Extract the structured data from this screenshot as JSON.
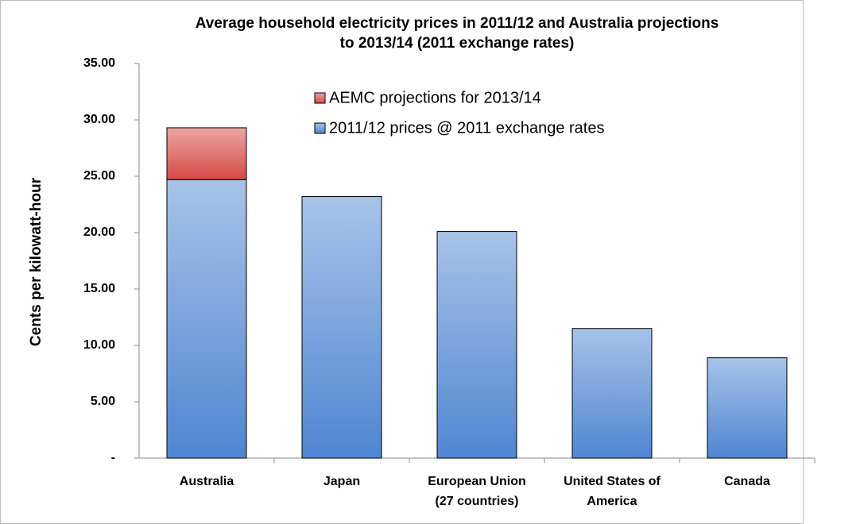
{
  "chart_data": {
    "type": "stacked_bar",
    "title": [
      "Average household electricity prices in 2011/12 and Australia projections",
      "to 2013/14 (2011 exchange rates)"
    ],
    "ylabel": "Cents per kilowatt-hour",
    "categories": [
      [
        "Australia"
      ],
      [
        "Japan"
      ],
      [
        "European Union",
        "(27 countries)"
      ],
      [
        "United States of",
        "America"
      ],
      [
        "Canada"
      ]
    ],
    "series": [
      {
        "name": "2011/12 prices @ 2011 exchange rates",
        "color": "#4f86d2",
        "values": [
          24.7,
          23.2,
          20.1,
          11.5,
          8.9
        ]
      },
      {
        "name": "AEMC projections for 2013/14",
        "color": "#d64b45",
        "values": [
          4.6,
          null,
          null,
          null,
          null
        ]
      }
    ],
    "ylim": [
      0,
      35
    ],
    "yticks": [
      {
        "value": 0,
        "label": "-"
      },
      {
        "value": 5,
        "label": "5.00"
      },
      {
        "value": 10,
        "label": "10.00"
      },
      {
        "value": 15,
        "label": "15.00"
      },
      {
        "value": 20,
        "label": "20.00"
      },
      {
        "value": 25,
        "label": "25.00"
      },
      {
        "value": 30,
        "label": "30.00"
      },
      {
        "value": 35,
        "label": "35.00"
      }
    ],
    "legend": "top"
  }
}
